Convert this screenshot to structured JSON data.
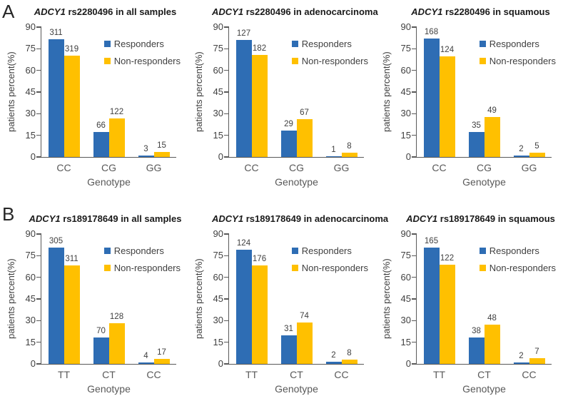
{
  "panels": [
    {
      "label": "A"
    },
    {
      "label": "B"
    }
  ],
  "colors": {
    "responders": "#2E6DB4",
    "non_responders": "#FFC000",
    "axis": "#595959",
    "tick_text": "#404040",
    "title_text": "#1A1A1A"
  },
  "chart_data": [
    {
      "type": "bar",
      "panel": "A",
      "title": "ADCY1 rs2280496 in all samples",
      "title_italic": "ADCY1",
      "title_rest": " rs2280496 in all samples",
      "categories": [
        "CC",
        "CG",
        "GG"
      ],
      "xlabel": "Genotype",
      "ylabel": "patients percent(%)",
      "ylim": [
        0,
        90
      ],
      "yticks": [
        0,
        15,
        30,
        45,
        60,
        75,
        90
      ],
      "legend_position": "top-right",
      "grid": false,
      "series": [
        {
          "name": "Responders",
          "color": "#2E6DB4",
          "counts": [
            311,
            66,
            3
          ],
          "percents": [
            81.8,
            17.4,
            0.8
          ]
        },
        {
          "name": "Non-responders",
          "color": "#FFC000",
          "counts": [
            319,
            122,
            15
          ],
          "percents": [
            70.0,
            26.8,
            3.3
          ]
        }
      ]
    },
    {
      "type": "bar",
      "panel": "A",
      "title": "ADCY1 rs2280496 in adenocarcinoma",
      "title_italic": "ADCY1",
      "title_rest": " rs2280496 in adenocarcinoma",
      "categories": [
        "CC",
        "CG",
        "GG"
      ],
      "xlabel": "Genotype",
      "ylabel": "patients percent(%)",
      "ylim": [
        0,
        90
      ],
      "yticks": [
        0,
        15,
        30,
        45,
        60,
        75,
        90
      ],
      "legend_position": "top-right",
      "grid": false,
      "series": [
        {
          "name": "Responders",
          "color": "#2E6DB4",
          "counts": [
            127,
            29,
            1
          ],
          "percents": [
            80.9,
            18.5,
            0.6
          ]
        },
        {
          "name": "Non-responders",
          "color": "#FFC000",
          "counts": [
            182,
            67,
            8
          ],
          "percents": [
            70.8,
            26.1,
            3.1
          ]
        }
      ]
    },
    {
      "type": "bar",
      "panel": "A",
      "title": "ADCY1 rs2280496 in squamous",
      "title_italic": "ADCY1",
      "title_rest": " rs2280496 in squamous",
      "categories": [
        "CC",
        "CG",
        "GG"
      ],
      "xlabel": "Genotype",
      "ylabel": "patients percent(%)",
      "ylim": [
        0,
        90
      ],
      "yticks": [
        0,
        15,
        30,
        45,
        60,
        75,
        90
      ],
      "legend_position": "top-right",
      "grid": false,
      "series": [
        {
          "name": "Responders",
          "color": "#2E6DB4",
          "counts": [
            168,
            35,
            2
          ],
          "percents": [
            82.0,
            17.1,
            1.0
          ]
        },
        {
          "name": "Non-responders",
          "color": "#FFC000",
          "counts": [
            124,
            49,
            5
          ],
          "percents": [
            69.7,
            27.5,
            2.8
          ]
        }
      ]
    },
    {
      "type": "bar",
      "panel": "B",
      "title": "ADCY1 rs189178649 in all samples",
      "title_italic": "ADCY1",
      "title_rest": " rs189178649 in all samples",
      "categories": [
        "TT",
        "CT",
        "CC"
      ],
      "xlabel": "Genotype",
      "ylabel": "patients percent(%)",
      "ylim": [
        0,
        90
      ],
      "yticks": [
        0,
        15,
        30,
        45,
        60,
        75,
        90
      ],
      "legend_position": "top-right",
      "grid": false,
      "series": [
        {
          "name": "Responders",
          "color": "#2E6DB4",
          "counts": [
            305,
            70,
            4
          ],
          "percents": [
            80.5,
            18.5,
            1.1
          ]
        },
        {
          "name": "Non-responders",
          "color": "#FFC000",
          "counts": [
            311,
            128,
            17
          ],
          "percents": [
            68.2,
            28.1,
            3.7
          ]
        }
      ]
    },
    {
      "type": "bar",
      "panel": "B",
      "title": "ADCY1 rs189178649 in adenocarcinoma",
      "title_italic": "ADCY1",
      "title_rest": " rs189178649 in adenocarcinoma",
      "categories": [
        "TT",
        "CT",
        "CC"
      ],
      "xlabel": "Genotype",
      "ylabel": "patients percent(%)",
      "ylim": [
        0,
        90
      ],
      "yticks": [
        0,
        15,
        30,
        45,
        60,
        75,
        90
      ],
      "legend_position": "top-right",
      "grid": false,
      "series": [
        {
          "name": "Responders",
          "color": "#2E6DB4",
          "counts": [
            124,
            31,
            2
          ],
          "percents": [
            79.0,
            19.7,
            1.3
          ]
        },
        {
          "name": "Non-responders",
          "color": "#FFC000",
          "counts": [
            176,
            74,
            8
          ],
          "percents": [
            68.2,
            28.7,
            3.1
          ]
        }
      ]
    },
    {
      "type": "bar",
      "panel": "B",
      "title": "ADCY1 rs189178649 in squamous",
      "title_italic": "ADCY1",
      "title_rest": " rs189178649 in squamous",
      "categories": [
        "TT",
        "CT",
        "CC"
      ],
      "xlabel": "Genotype",
      "ylabel": "patients percent(%)",
      "ylim": [
        0,
        90
      ],
      "yticks": [
        0,
        15,
        30,
        45,
        60,
        75,
        90
      ],
      "legend_position": "top-right",
      "grid": false,
      "series": [
        {
          "name": "Responders",
          "color": "#2E6DB4",
          "counts": [
            165,
            38,
            2
          ],
          "percents": [
            80.5,
            18.5,
            1.0
          ]
        },
        {
          "name": "Non-responders",
          "color": "#FFC000",
          "counts": [
            122,
            48,
            7
          ],
          "percents": [
            68.9,
            27.1,
            4.0
          ]
        }
      ]
    }
  ]
}
